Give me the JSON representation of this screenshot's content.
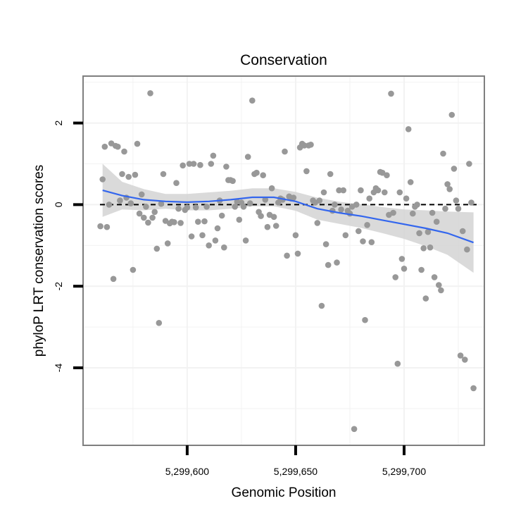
{
  "chart_data": {
    "type": "scatter",
    "title": "Conservation",
    "xlabel": "Genomic Position",
    "ylabel": "phyloP LRT conservation scores",
    "xlim": [
      5299552,
      5299737
    ],
    "ylim": [
      -5.9,
      3.15
    ],
    "x_ticks": [
      {
        "value": 5299600,
        "label": "5,299,600"
      },
      {
        "value": 5299650,
        "label": "5,299,650"
      },
      {
        "value": 5299700,
        "label": "5,299,700"
      }
    ],
    "y_ticks": [
      {
        "value": -4,
        "label": "-4"
      },
      {
        "value": -2,
        "label": "-2"
      },
      {
        "value": 0,
        "label": "0"
      },
      {
        "value": 2,
        "label": "2"
      }
    ],
    "y_minor_grid": [
      -5,
      -3,
      -1,
      1,
      3
    ],
    "x_minor_grid": [
      5299575,
      5299625,
      5299675,
      5299725
    ],
    "grid": true,
    "reference_line": {
      "y": 0,
      "style": "dashed"
    },
    "colors": {
      "points": "#989898",
      "smooth": "#3366ee",
      "band": "#d3d3d3",
      "panel_border": "#7f7f7f",
      "grid": "#f2f2f2"
    },
    "points": [
      {
        "x": 5299560,
        "y": -0.53
      },
      {
        "x": 5299561,
        "y": 0.62
      },
      {
        "x": 5299562,
        "y": 1.42
      },
      {
        "x": 5299563,
        "y": -0.55
      },
      {
        "x": 5299564,
        "y": 0.0
      },
      {
        "x": 5299565,
        "y": 1.5
      },
      {
        "x": 5299566,
        "y": -1.82
      },
      {
        "x": 5299567,
        "y": 1.44
      },
      {
        "x": 5299568,
        "y": 1.42
      },
      {
        "x": 5299569,
        "y": 0.1
      },
      {
        "x": 5299570,
        "y": 0.75
      },
      {
        "x": 5299571,
        "y": 1.3
      },
      {
        "x": 5299572,
        "y": 0.17
      },
      {
        "x": 5299573,
        "y": 0.68
      },
      {
        "x": 5299574,
        "y": 0.03
      },
      {
        "x": 5299575,
        "y": -1.6
      },
      {
        "x": 5299576,
        "y": 0.73
      },
      {
        "x": 5299577,
        "y": 1.49
      },
      {
        "x": 5299578,
        "y": -0.22
      },
      {
        "x": 5299579,
        "y": 0.25
      },
      {
        "x": 5299580,
        "y": -0.32
      },
      {
        "x": 5299581,
        "y": -0.05
      },
      {
        "x": 5299582,
        "y": -0.44
      },
      {
        "x": 5299583,
        "y": 2.73
      },
      {
        "x": 5299584,
        "y": -0.32
      },
      {
        "x": 5299585,
        "y": -0.18
      },
      {
        "x": 5299586,
        "y": -1.08
      },
      {
        "x": 5299587,
        "y": -2.9
      },
      {
        "x": 5299588,
        "y": 0.02
      },
      {
        "x": 5299589,
        "y": 0.75
      },
      {
        "x": 5299590,
        "y": -0.4
      },
      {
        "x": 5299591,
        "y": -0.95
      },
      {
        "x": 5299592,
        "y": -0.46
      },
      {
        "x": 5299593,
        "y": -0.42
      },
      {
        "x": 5299594,
        "y": -0.43
      },
      {
        "x": 5299595,
        "y": 0.53
      },
      {
        "x": 5299596,
        "y": -0.1
      },
      {
        "x": 5299597,
        "y": -0.45
      },
      {
        "x": 5299598,
        "y": 0.96
      },
      {
        "x": 5299599,
        "y": -0.13
      },
      {
        "x": 5299600,
        "y": -0.07
      },
      {
        "x": 5299601,
        "y": 1.0
      },
      {
        "x": 5299602,
        "y": -0.78
      },
      {
        "x": 5299603,
        "y": 1.0
      },
      {
        "x": 5299604,
        "y": -0.07
      },
      {
        "x": 5299605,
        "y": -0.42
      },
      {
        "x": 5299606,
        "y": 0.97
      },
      {
        "x": 5299607,
        "y": -0.75
      },
      {
        "x": 5299608,
        "y": -0.41
      },
      {
        "x": 5299609,
        "y": -0.05
      },
      {
        "x": 5299610,
        "y": -1.0
      },
      {
        "x": 5299611,
        "y": 1.0
      },
      {
        "x": 5299612,
        "y": 1.2
      },
      {
        "x": 5299613,
        "y": -0.88
      },
      {
        "x": 5299614,
        "y": -0.58
      },
      {
        "x": 5299615,
        "y": 0.1
      },
      {
        "x": 5299616,
        "y": -0.27
      },
      {
        "x": 5299617,
        "y": -1.05
      },
      {
        "x": 5299618,
        "y": 0.93
      },
      {
        "x": 5299619,
        "y": 0.6
      },
      {
        "x": 5299620,
        "y": 0.6
      },
      {
        "x": 5299621,
        "y": 0.58
      },
      {
        "x": 5299622,
        "y": -0.05
      },
      {
        "x": 5299623,
        "y": 0.07
      },
      {
        "x": 5299624,
        "y": -0.37
      },
      {
        "x": 5299625,
        "y": 0.05
      },
      {
        "x": 5299626,
        "y": -0.05
      },
      {
        "x": 5299627,
        "y": -0.88
      },
      {
        "x": 5299628,
        "y": 1.17
      },
      {
        "x": 5299629,
        "y": 0.03
      },
      {
        "x": 5299630,
        "y": 2.55
      },
      {
        "x": 5299631,
        "y": 0.75
      },
      {
        "x": 5299632,
        "y": 0.78
      },
      {
        "x": 5299633,
        "y": -0.18
      },
      {
        "x": 5299634,
        "y": -0.28
      },
      {
        "x": 5299635,
        "y": 0.72
      },
      {
        "x": 5299636,
        "y": 0.12
      },
      {
        "x": 5299637,
        "y": -0.55
      },
      {
        "x": 5299638,
        "y": -0.25
      },
      {
        "x": 5299639,
        "y": 0.4
      },
      {
        "x": 5299640,
        "y": -0.3
      },
      {
        "x": 5299641,
        "y": -0.52
      },
      {
        "x": 5299642,
        "y": 0.05
      },
      {
        "x": 5299643,
        "y": 0.15
      },
      {
        "x": 5299644,
        "y": 0.12
      },
      {
        "x": 5299645,
        "y": 1.3
      },
      {
        "x": 5299646,
        "y": -1.25
      },
      {
        "x": 5299647,
        "y": 0.2
      },
      {
        "x": 5299648,
        "y": 0.15
      },
      {
        "x": 5299649,
        "y": 0.17
      },
      {
        "x": 5299650,
        "y": -0.75
      },
      {
        "x": 5299651,
        "y": -1.2
      },
      {
        "x": 5299652,
        "y": 1.4
      },
      {
        "x": 5299653,
        "y": 1.49
      },
      {
        "x": 5299654,
        "y": 1.45
      },
      {
        "x": 5299655,
        "y": 0.82
      },
      {
        "x": 5299656,
        "y": 1.45
      },
      {
        "x": 5299657,
        "y": 1.47
      },
      {
        "x": 5299658,
        "y": 0.1
      },
      {
        "x": 5299659,
        "y": 0.05
      },
      {
        "x": 5299660,
        "y": -0.45
      },
      {
        "x": 5299661,
        "y": 0.1
      },
      {
        "x": 5299662,
        "y": -2.48
      },
      {
        "x": 5299663,
        "y": 0.3
      },
      {
        "x": 5299664,
        "y": -0.97
      },
      {
        "x": 5299665,
        "y": -1.48
      },
      {
        "x": 5299666,
        "y": 0.75
      },
      {
        "x": 5299667,
        "y": -0.15
      },
      {
        "x": 5299668,
        "y": 0.0
      },
      {
        "x": 5299669,
        "y": -1.42
      },
      {
        "x": 5299670,
        "y": 0.35
      },
      {
        "x": 5299671,
        "y": -0.12
      },
      {
        "x": 5299672,
        "y": 0.35
      },
      {
        "x": 5299673,
        "y": -0.75
      },
      {
        "x": 5299674,
        "y": -0.15
      },
      {
        "x": 5299675,
        "y": -0.22
      },
      {
        "x": 5299676,
        "y": -0.05
      },
      {
        "x": 5299677,
        "y": -5.5
      },
      {
        "x": 5299678,
        "y": 0.0
      },
      {
        "x": 5299679,
        "y": -0.65
      },
      {
        "x": 5299680,
        "y": 0.35
      },
      {
        "x": 5299681,
        "y": -0.9
      },
      {
        "x": 5299682,
        "y": -2.83
      },
      {
        "x": 5299683,
        "y": -0.5
      },
      {
        "x": 5299684,
        "y": 0.15
      },
      {
        "x": 5299685,
        "y": -0.92
      },
      {
        "x": 5299686,
        "y": 0.3
      },
      {
        "x": 5299687,
        "y": 0.4
      },
      {
        "x": 5299688,
        "y": 0.35
      },
      {
        "x": 5299689,
        "y": 0.8
      },
      {
        "x": 5299690,
        "y": 0.78
      },
      {
        "x": 5299691,
        "y": 0.3
      },
      {
        "x": 5299692,
        "y": 0.72
      },
      {
        "x": 5299693,
        "y": -0.25
      },
      {
        "x": 5299694,
        "y": 2.72
      },
      {
        "x": 5299695,
        "y": -0.2
      },
      {
        "x": 5299696,
        "y": -1.78
      },
      {
        "x": 5299697,
        "y": -3.9
      },
      {
        "x": 5299698,
        "y": 0.3
      },
      {
        "x": 5299699,
        "y": -1.33
      },
      {
        "x": 5299700,
        "y": -1.57
      },
      {
        "x": 5299701,
        "y": 0.15
      },
      {
        "x": 5299702,
        "y": 1.85
      },
      {
        "x": 5299703,
        "y": 0.55
      },
      {
        "x": 5299704,
        "y": -0.22
      },
      {
        "x": 5299705,
        "y": -0.05
      },
      {
        "x": 5299706,
        "y": 0.0
      },
      {
        "x": 5299707,
        "y": -0.7
      },
      {
        "x": 5299708,
        "y": -1.6
      },
      {
        "x": 5299709,
        "y": -1.07
      },
      {
        "x": 5299710,
        "y": -2.3
      },
      {
        "x": 5299711,
        "y": -0.67
      },
      {
        "x": 5299712,
        "y": -1.05
      },
      {
        "x": 5299713,
        "y": -0.2
      },
      {
        "x": 5299714,
        "y": -1.78
      },
      {
        "x": 5299715,
        "y": -0.42
      },
      {
        "x": 5299716,
        "y": -1.97
      },
      {
        "x": 5299717,
        "y": -2.1
      },
      {
        "x": 5299718,
        "y": 1.25
      },
      {
        "x": 5299719,
        "y": -0.1
      },
      {
        "x": 5299720,
        "y": 0.5
      },
      {
        "x": 5299721,
        "y": 0.38
      },
      {
        "x": 5299722,
        "y": 2.2
      },
      {
        "x": 5299723,
        "y": 0.88
      },
      {
        "x": 5299724,
        "y": 0.1
      },
      {
        "x": 5299725,
        "y": -0.1
      },
      {
        "x": 5299726,
        "y": -3.7
      },
      {
        "x": 5299727,
        "y": -0.65
      },
      {
        "x": 5299728,
        "y": -3.8
      },
      {
        "x": 5299729,
        "y": -1.1
      },
      {
        "x": 5299730,
        "y": 1.0
      },
      {
        "x": 5299731,
        "y": 0.05
      },
      {
        "x": 5299732,
        "y": -4.5
      }
    ],
    "smooth": {
      "x": [
        5299561,
        5299570,
        5299580,
        5299590,
        5299600,
        5299610,
        5299620,
        5299630,
        5299640,
        5299650,
        5299660,
        5299670,
        5299680,
        5299690,
        5299700,
        5299710,
        5299720,
        5299732
      ],
      "y": [
        0.35,
        0.22,
        0.12,
        0.08,
        0.06,
        0.08,
        0.12,
        0.18,
        0.18,
        0.08,
        -0.1,
        -0.2,
        -0.28,
        -0.38,
        -0.48,
        -0.58,
        -0.7,
        -0.93
      ],
      "lower": [
        -0.3,
        -0.12,
        -0.14,
        -0.1,
        -0.14,
        -0.14,
        -0.1,
        -0.04,
        -0.04,
        -0.15,
        -0.37,
        -0.47,
        -0.57,
        -0.7,
        -0.84,
        -1.02,
        -1.23,
        -1.67
      ],
      "upper": [
        1.0,
        0.56,
        0.38,
        0.26,
        0.26,
        0.3,
        0.34,
        0.4,
        0.4,
        0.31,
        0.17,
        0.07,
        0.01,
        -0.06,
        -0.12,
        -0.14,
        -0.17,
        -0.19
      ]
    }
  }
}
